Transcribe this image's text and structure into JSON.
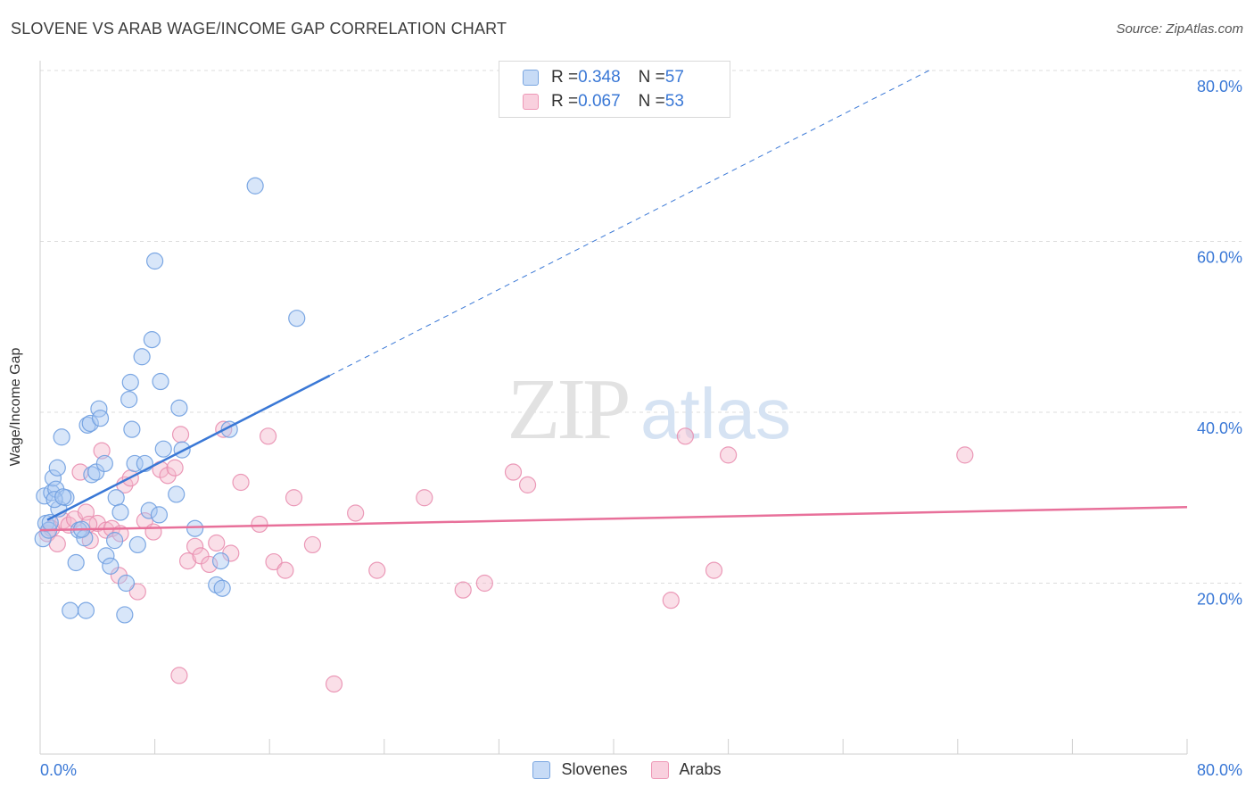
{
  "title": "SLOVENE VS ARAB WAGE/INCOME GAP CORRELATION CHART",
  "source": "Source: ZipAtlas.com",
  "watermark": {
    "zip": "ZIP",
    "atlas": "atlas"
  },
  "legend_top": [
    {
      "r_label": "R = ",
      "r_value": "0.348",
      "n_label": "N = ",
      "n_value": "57",
      "color": "#a9c8f2"
    },
    {
      "r_label": "R = ",
      "r_value": "0.067",
      "n_label": "N = ",
      "n_value": "53",
      "color": "#f5b8cd"
    }
  ],
  "legend_bottom": [
    {
      "label": "Slovenes",
      "color": "#a9c8f2"
    },
    {
      "label": "Arabs",
      "color": "#f5b8cd"
    }
  ],
  "chart_data": {
    "type": "scatter",
    "title": "SLOVENE VS ARAB WAGE/INCOME GAP CORRELATION CHART",
    "xlabel": "",
    "ylabel": "Wage/Income Gap",
    "xlim": [
      0,
      80
    ],
    "ylim": [
      0,
      80
    ],
    "x_tick_labels": [
      "0.0%",
      "80.0%"
    ],
    "y_tick_labels": [
      "20.0%",
      "40.0%",
      "60.0%",
      "80.0%"
    ],
    "y_ticks": [
      20,
      40,
      60,
      80
    ],
    "grid": true,
    "series": [
      {
        "name": "Slovenes",
        "color": "#3a78d6",
        "fill": "#a9c8f2",
        "r": 0.348,
        "n": 57,
        "trend": {
          "x": [
            0.5,
            20.2
          ],
          "y": [
            27.4,
            44.3
          ],
          "dashed_to": {
            "x": 62,
            "y": 80
          }
        },
        "points": [
          [
            0.2,
            25.2
          ],
          [
            0.3,
            30.2
          ],
          [
            0.4,
            27.0
          ],
          [
            0.6,
            26.2
          ],
          [
            0.8,
            30.6
          ],
          [
            0.9,
            32.3
          ],
          [
            1.1,
            31.0
          ],
          [
            1.2,
            33.5
          ],
          [
            1.3,
            28.7
          ],
          [
            1.5,
            37.1
          ],
          [
            1.8,
            30.0
          ],
          [
            2.1,
            16.8
          ],
          [
            2.5,
            22.4
          ],
          [
            2.7,
            26.2
          ],
          [
            3.1,
            25.3
          ],
          [
            3.3,
            38.5
          ],
          [
            3.5,
            38.7
          ],
          [
            3.6,
            32.7
          ],
          [
            3.9,
            33.0
          ],
          [
            4.1,
            40.4
          ],
          [
            4.2,
            39.3
          ],
          [
            4.5,
            34.0
          ],
          [
            4.6,
            23.2
          ],
          [
            4.9,
            22.0
          ],
          [
            5.2,
            25.0
          ],
          [
            5.3,
            30.0
          ],
          [
            5.6,
            28.3
          ],
          [
            5.9,
            16.3
          ],
          [
            6.0,
            20.0
          ],
          [
            6.2,
            41.5
          ],
          [
            6.3,
            43.5
          ],
          [
            6.6,
            34.0
          ],
          [
            6.8,
            24.5
          ],
          [
            7.1,
            46.5
          ],
          [
            7.3,
            34.0
          ],
          [
            7.6,
            28.5
          ],
          [
            7.8,
            48.5
          ],
          [
            8.0,
            57.7
          ],
          [
            8.3,
            28.0
          ],
          [
            8.4,
            43.6
          ],
          [
            8.6,
            35.7
          ],
          [
            9.5,
            30.4
          ],
          [
            9.7,
            40.5
          ],
          [
            9.9,
            35.6
          ],
          [
            10.8,
            26.4
          ],
          [
            12.3,
            19.8
          ],
          [
            12.6,
            22.6
          ],
          [
            12.7,
            19.4
          ],
          [
            13.2,
            38.0
          ],
          [
            15.0,
            66.5
          ],
          [
            17.9,
            51.0
          ],
          [
            1.0,
            29.8
          ],
          [
            2.9,
            26.3
          ],
          [
            0.7,
            27.1
          ],
          [
            1.6,
            30.1
          ],
          [
            3.2,
            16.8
          ],
          [
            6.4,
            38.0
          ]
        ]
      },
      {
        "name": "Arabs",
        "color": "#e8709a",
        "fill": "#f5b8cd",
        "r": 0.067,
        "n": 53,
        "trend": {
          "x": [
            0,
            80
          ],
          "y": [
            26.2,
            28.9
          ]
        },
        "points": [
          [
            0.5,
            25.8
          ],
          [
            0.8,
            26.4
          ],
          [
            1.2,
            24.6
          ],
          [
            1.6,
            27.3
          ],
          [
            2.0,
            26.8
          ],
          [
            2.4,
            27.5
          ],
          [
            2.8,
            33.0
          ],
          [
            3.2,
            28.3
          ],
          [
            3.5,
            25.0
          ],
          [
            4.0,
            27.0
          ],
          [
            4.3,
            35.5
          ],
          [
            4.6,
            26.2
          ],
          [
            5.0,
            26.4
          ],
          [
            5.5,
            20.9
          ],
          [
            5.9,
            31.5
          ],
          [
            6.3,
            32.3
          ],
          [
            6.8,
            19.0
          ],
          [
            7.3,
            27.3
          ],
          [
            7.9,
            26.0
          ],
          [
            8.4,
            33.3
          ],
          [
            8.9,
            32.6
          ],
          [
            9.4,
            33.5
          ],
          [
            9.8,
            37.4
          ],
          [
            10.3,
            22.6
          ],
          [
            10.8,
            24.3
          ],
          [
            11.2,
            23.2
          ],
          [
            11.8,
            22.2
          ],
          [
            12.3,
            24.7
          ],
          [
            12.8,
            38.0
          ],
          [
            13.3,
            23.5
          ],
          [
            14.0,
            31.8
          ],
          [
            15.3,
            26.9
          ],
          [
            16.3,
            22.5
          ],
          [
            17.1,
            21.5
          ],
          [
            17.7,
            30.0
          ],
          [
            19.0,
            24.5
          ],
          [
            20.5,
            8.2
          ],
          [
            22.0,
            28.2
          ],
          [
            23.5,
            21.5
          ],
          [
            26.8,
            30.0
          ],
          [
            29.5,
            19.2
          ],
          [
            31.0,
            20.0
          ],
          [
            33.0,
            33.0
          ],
          [
            34.0,
            31.5
          ],
          [
            44.0,
            18.0
          ],
          [
            45.0,
            37.2
          ],
          [
            47.0,
            21.5
          ],
          [
            48.0,
            35.0
          ],
          [
            64.5,
            35.0
          ],
          [
            9.7,
            9.2
          ],
          [
            5.6,
            25.8
          ],
          [
            15.9,
            37.2
          ],
          [
            3.4,
            26.9
          ]
        ]
      }
    ]
  }
}
